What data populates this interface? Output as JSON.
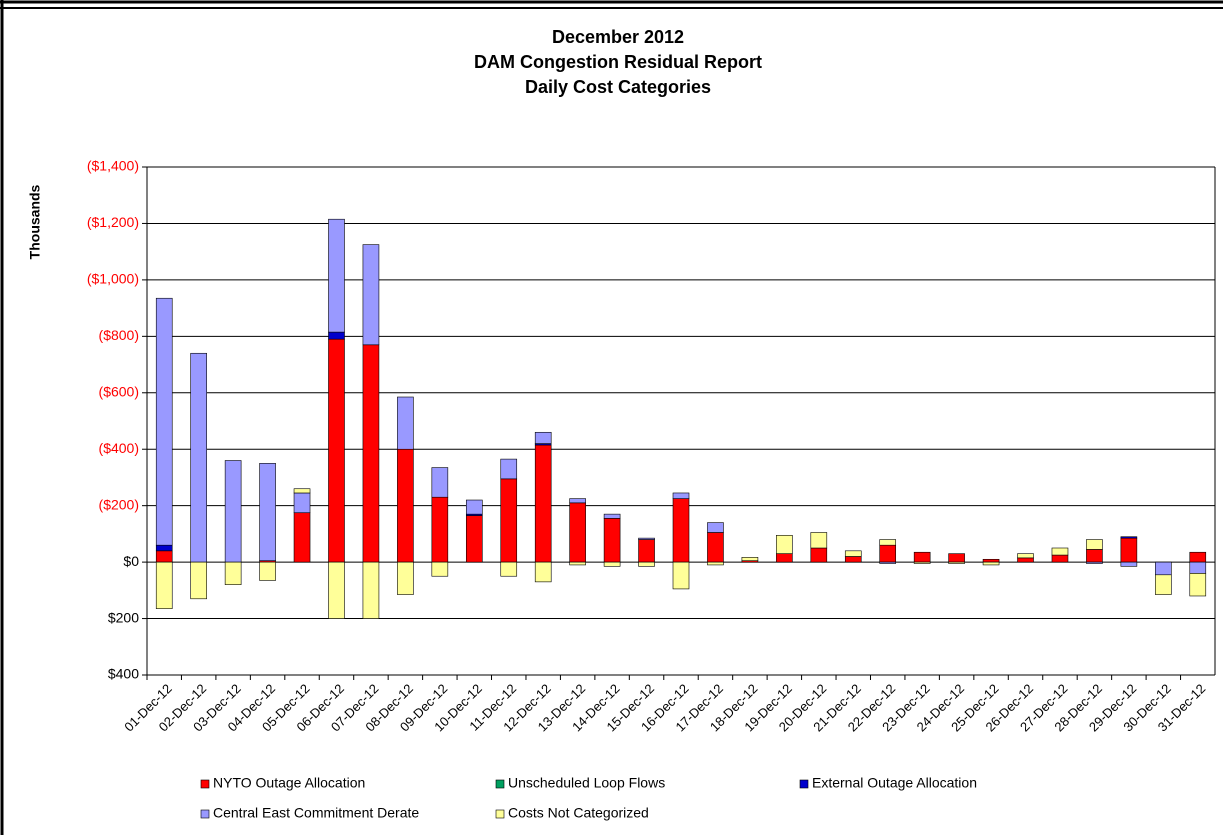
{
  "chart_data": {
    "type": "stacked_bar",
    "title": [
      "December 2012",
      "DAM Congestion Residual Report",
      "Daily Cost Categories"
    ],
    "y_axis_label": "Thousands",
    "categories": [
      "01-Dec-12",
      "02-Dec-12",
      "03-Dec-12",
      "04-Dec-12",
      "05-Dec-12",
      "06-Dec-12",
      "07-Dec-12",
      "08-Dec-12",
      "09-Dec-12",
      "10-Dec-12",
      "11-Dec-12",
      "12-Dec-12",
      "13-Dec-12",
      "14-Dec-12",
      "15-Dec-12",
      "16-Dec-12",
      "17-Dec-12",
      "18-Dec-12",
      "19-Dec-12",
      "20-Dec-12",
      "21-Dec-12",
      "22-Dec-12",
      "23-Dec-12",
      "24-Dec-12",
      "25-Dec-12",
      "26-Dec-12",
      "27-Dec-12",
      "28-Dec-12",
      "29-Dec-12",
      "30-Dec-12",
      "31-Dec-12"
    ],
    "series": [
      {
        "name": "NYTO Outage Allocation",
        "color": "#ff0000",
        "values": [
          40,
          0,
          0,
          5,
          175,
          790,
          770,
          400,
          230,
          165,
          295,
          415,
          210,
          155,
          80,
          225,
          105,
          5,
          30,
          50,
          20,
          60,
          35,
          30,
          10,
          15,
          25,
          45,
          85,
          0,
          35
        ]
      },
      {
        "name": "Unscheduled Loop Flows",
        "color": "#00a060",
        "values": [
          0,
          0,
          0,
          0,
          0,
          0,
          0,
          0,
          0,
          0,
          0,
          0,
          0,
          0,
          0,
          0,
          0,
          0,
          0,
          0,
          0,
          0,
          0,
          0,
          0,
          0,
          0,
          0,
          0,
          0,
          0
        ]
      },
      {
        "name": "External Outage Allocation",
        "color": "#0000cc",
        "values": [
          20,
          0,
          0,
          0,
          0,
          25,
          0,
          0,
          0,
          5,
          0,
          5,
          0,
          0,
          0,
          0,
          0,
          0,
          0,
          0,
          0,
          0,
          0,
          0,
          0,
          0,
          0,
          0,
          5,
          0,
          0
        ]
      },
      {
        "name": "Central East Commitment Derate",
        "color": "#9999ff",
        "values": [
          875,
          740,
          360,
          345,
          70,
          400,
          355,
          185,
          105,
          50,
          70,
          40,
          15,
          15,
          5,
          20,
          35,
          0,
          0,
          0,
          0,
          -5,
          0,
          0,
          0,
          0,
          0,
          -5,
          -15,
          -45,
          -40
        ]
      },
      {
        "name": "Costs Not Categorized",
        "color": "#ffff99",
        "values": [
          -165,
          -130,
          -80,
          -65,
          15,
          -200,
          -200,
          -115,
          -50,
          0,
          -50,
          -70,
          -10,
          -15,
          -15,
          -95,
          -10,
          12,
          65,
          55,
          20,
          20,
          -5,
          -5,
          -10,
          15,
          25,
          35,
          0,
          -70,
          -80
        ]
      }
    ],
    "ylim": [
      -400,
      1400
    ],
    "yticks": [
      {
        "value": 1400,
        "label": "($1,400)"
      },
      {
        "value": 1200,
        "label": "($1,200)"
      },
      {
        "value": 1000,
        "label": "($1,000)"
      },
      {
        "value": 800,
        "label": "($800)"
      },
      {
        "value": 600,
        "label": "($600)"
      },
      {
        "value": 400,
        "label": "($400)"
      },
      {
        "value": 200,
        "label": "($200)"
      },
      {
        "value": 0,
        "label": "$0"
      },
      {
        "value": -200,
        "label": "$200"
      },
      {
        "value": -400,
        "label": "$400"
      }
    ],
    "grid": true
  }
}
